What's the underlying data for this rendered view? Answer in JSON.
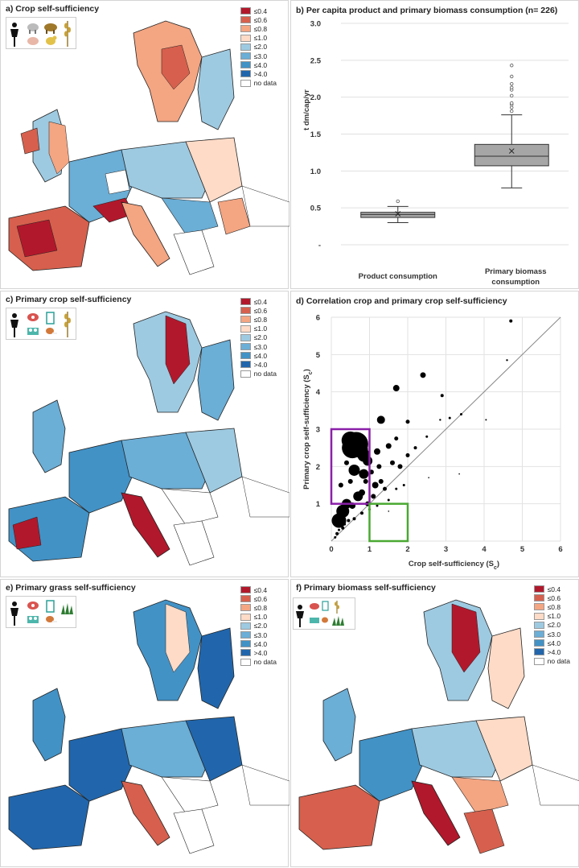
{
  "figure": {
    "panel_a": {
      "title": "a) Crop self-sufficiency",
      "icons": [
        "person-icon",
        "sheep-icon",
        "cow-icon",
        "pig-icon",
        "chicken-icon",
        "wheat-icon"
      ]
    },
    "panel_c": {
      "title": "c) Primary crop self-sufficiency",
      "icons": [
        "person-icon",
        "meat-icon",
        "milk-icon",
        "eggs-icon",
        "chicken-leg-icon",
        "wheat-icon"
      ]
    },
    "panel_e": {
      "title": "e) Primary grass self-sufficiency",
      "icons": [
        "person-icon",
        "meat-icon",
        "milk-icon",
        "eggs-icon",
        "chicken-leg-icon",
        "grass-icon"
      ]
    },
    "panel_f": {
      "title": "f) Primary biomass self-sufficiency",
      "icons": [
        "person-icon",
        "meat-icon",
        "milk-icon",
        "wheat-icon",
        "eggs-icon",
        "chicken-leg-icon",
        "grass-icon"
      ]
    }
  },
  "legend": {
    "items": [
      {
        "label": "≤0.4",
        "color": "#b2182b"
      },
      {
        "label": "≤0.6",
        "color": "#d6604d"
      },
      {
        "label": "≤0.8",
        "color": "#f4a582"
      },
      {
        "label": "≤1.0",
        "color": "#fddbc7"
      },
      {
        "label": "≤2.0",
        "color": "#9ecae1"
      },
      {
        "label": "≤3.0",
        "color": "#6baed6"
      },
      {
        "label": "≤4.0",
        "color": "#4292c6"
      },
      {
        "label": ">4.0",
        "color": "#2166ac"
      },
      {
        "label": "no data",
        "color": "#ffffff"
      }
    ]
  },
  "chart_data": [
    {
      "panel": "b",
      "type": "box",
      "title": "b) Per capita product and primary biomass consumption (n= 226)",
      "ylabel": "t dm/cap/yr",
      "ylim": [
        0,
        3.0
      ],
      "yticks": [
        "-",
        "0.5",
        "1.0",
        "1.5",
        "2.0",
        "2.5",
        "3.0"
      ],
      "categories": [
        {
          "line1": "Product consumption",
          "line2": ""
        },
        {
          "line1": "Primary biomass",
          "line2": "consumption"
        }
      ],
      "boxes": [
        {
          "min": 0.3,
          "q1": 0.37,
          "median": 0.41,
          "q3": 0.44,
          "max": 0.52,
          "mean": 0.42,
          "outliers": [
            0.59
          ]
        },
        {
          "min": 0.77,
          "q1": 1.07,
          "median": 1.2,
          "q3": 1.36,
          "max": 1.76,
          "mean": 1.27,
          "outliers": [
            1.81,
            1.86,
            1.9,
            1.92,
            2.02,
            2.1,
            2.13,
            2.18,
            2.28,
            2.43
          ]
        }
      ],
      "box_color": "#a6a6a6"
    },
    {
      "panel": "d",
      "type": "scatter",
      "title": "d) Correlation crop and primary crop self-sufficiency",
      "xlabel": "Crop self-sufficiency (S",
      "xlabel_sub": "c",
      "xlabel_end": ")",
      "ylabel": "Primary crop self-sufficiency (S",
      "ylabel_sub": "c",
      "ylabel_end": ")",
      "xlim": [
        0,
        6
      ],
      "ylim": [
        0,
        6
      ],
      "xticks": [
        "0",
        "1",
        "2",
        "3",
        "4",
        "5",
        "6"
      ],
      "yticks": [
        "1",
        "2",
        "3",
        "4",
        "5",
        "6"
      ],
      "reference_line": [
        [
          0,
          0
        ],
        [
          6,
          6
        ]
      ],
      "highlight_boxes": [
        {
          "x0": 0,
          "x1": 1,
          "y0": 1,
          "y1": 3,
          "color": "#8b1fa9"
        },
        {
          "x0": 1,
          "x1": 2,
          "y0": 0,
          "y1": 1,
          "color": "#4aa832"
        }
      ],
      "points": [
        {
          "x": 0.65,
          "y": 2.6,
          "s": 15
        },
        {
          "x": 0.55,
          "y": 2.5,
          "s": 13
        },
        {
          "x": 0.5,
          "y": 2.7,
          "s": 11
        },
        {
          "x": 0.75,
          "y": 2.45,
          "s": 10
        },
        {
          "x": 0.85,
          "y": 2.3,
          "s": 8
        },
        {
          "x": 0.2,
          "y": 0.55,
          "s": 9
        },
        {
          "x": 0.3,
          "y": 0.8,
          "s": 8
        },
        {
          "x": 0.6,
          "y": 1.9,
          "s": 7
        },
        {
          "x": 0.85,
          "y": 1.8,
          "s": 6
        },
        {
          "x": 0.95,
          "y": 2.15,
          "s": 6
        },
        {
          "x": 0.7,
          "y": 1.2,
          "s": 6
        },
        {
          "x": 0.4,
          "y": 1.0,
          "s": 6
        },
        {
          "x": 1.3,
          "y": 3.25,
          "s": 5
        },
        {
          "x": 1.7,
          "y": 4.1,
          "s": 4
        },
        {
          "x": 2.4,
          "y": 4.45,
          "s": 3.5
        },
        {
          "x": 1.2,
          "y": 2.4,
          "s": 4
        },
        {
          "x": 1.5,
          "y": 2.55,
          "s": 3.5
        },
        {
          "x": 1.6,
          "y": 2.1,
          "s": 3
        },
        {
          "x": 1.8,
          "y": 2.0,
          "s": 3
        },
        {
          "x": 1.15,
          "y": 1.5,
          "s": 4
        },
        {
          "x": 1.3,
          "y": 1.6,
          "s": 3
        },
        {
          "x": 0.55,
          "y": 0.95,
          "s": 4
        },
        {
          "x": 0.8,
          "y": 1.3,
          "s": 4
        },
        {
          "x": 0.95,
          "y": 1.0,
          "s": 3
        },
        {
          "x": 1.1,
          "y": 1.2,
          "s": 3
        },
        {
          "x": 1.4,
          "y": 1.4,
          "s": 2.5
        },
        {
          "x": 2.0,
          "y": 2.3,
          "s": 2.5
        },
        {
          "x": 2.2,
          "y": 2.5,
          "s": 2
        },
        {
          "x": 2.0,
          "y": 3.2,
          "s": 2.5
        },
        {
          "x": 1.7,
          "y": 2.75,
          "s": 2.5
        },
        {
          "x": 2.9,
          "y": 3.9,
          "s": 2
        },
        {
          "x": 3.1,
          "y": 3.3,
          "s": 1.5
        },
        {
          "x": 3.4,
          "y": 3.4,
          "s": 1.5
        },
        {
          "x": 2.85,
          "y": 3.25,
          "s": 1.2
        },
        {
          "x": 4.05,
          "y": 3.25,
          "s": 1
        },
        {
          "x": 4.7,
          "y": 5.9,
          "s": 2
        },
        {
          "x": 4.6,
          "y": 4.85,
          "s": 1.2
        },
        {
          "x": 2.5,
          "y": 2.8,
          "s": 1.5
        },
        {
          "x": 0.15,
          "y": 0.2,
          "s": 2
        },
        {
          "x": 0.3,
          "y": 0.35,
          "s": 2
        },
        {
          "x": 0.45,
          "y": 0.55,
          "s": 2
        },
        {
          "x": 0.6,
          "y": 0.6,
          "s": 2
        },
        {
          "x": 0.8,
          "y": 0.75,
          "s": 2
        },
        {
          "x": 1.0,
          "y": 0.85,
          "s": 1.5
        },
        {
          "x": 1.2,
          "y": 0.95,
          "s": 1.5
        },
        {
          "x": 1.5,
          "y": 1.1,
          "s": 1.5
        },
        {
          "x": 1.7,
          "y": 1.4,
          "s": 1.5
        },
        {
          "x": 1.9,
          "y": 1.5,
          "s": 1.5
        },
        {
          "x": 0.9,
          "y": 1.6,
          "s": 3
        },
        {
          "x": 1.05,
          "y": 1.85,
          "s": 3
        },
        {
          "x": 1.25,
          "y": 2.0,
          "s": 3
        },
        {
          "x": 0.4,
          "y": 2.1,
          "s": 3
        },
        {
          "x": 0.25,
          "y": 1.5,
          "s": 3
        },
        {
          "x": 0.5,
          "y": 1.6,
          "s": 3
        },
        {
          "x": 3.35,
          "y": 1.8,
          "s": 0.8
        },
        {
          "x": 2.55,
          "y": 1.7,
          "s": 0.8
        },
        {
          "x": 1.5,
          "y": 0.8,
          "s": 0.8
        },
        {
          "x": 0.1,
          "y": 0.1,
          "s": 1.5
        },
        {
          "x": 0.2,
          "y": 0.3,
          "s": 1.5
        },
        {
          "x": 0.35,
          "y": 0.45,
          "s": 1.5
        }
      ]
    }
  ]
}
